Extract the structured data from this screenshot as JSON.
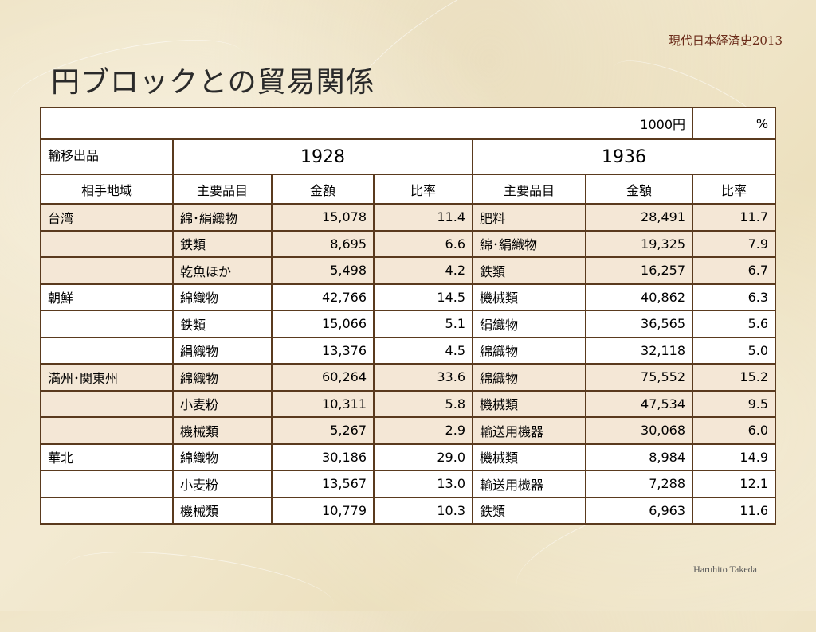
{
  "slide": {
    "header": "現代日本経済史2013",
    "title": "円ブロックとの貿易関係",
    "footer": "Haruhito Takeda"
  },
  "table": {
    "unit_amount": "1000円",
    "unit_ratio": "%",
    "corner_label": "輸移出品",
    "years": [
      "1928",
      "1936"
    ],
    "headers": {
      "region": "相手地域",
      "item_1928": "主要品目",
      "amount_1928": "金額",
      "ratio_1928": "比率",
      "item_1936": "主要品目",
      "amount_1936": "金額",
      "ratio_1936": "比率"
    },
    "rows": [
      {
        "region": "台湾",
        "item_1928": "綿･絹織物",
        "amount_1928": "15,078",
        "ratio_1928": "11.4",
        "item_1936": "肥料",
        "amount_1936": "28,491",
        "ratio_1936": "11.7"
      },
      {
        "region": "",
        "item_1928": "鉄類",
        "amount_1928": "8,695",
        "ratio_1928": "6.6",
        "item_1936": "綿･絹織物",
        "amount_1936": "19,325",
        "ratio_1936": "7.9"
      },
      {
        "region": "",
        "item_1928": "乾魚ほか",
        "amount_1928": "5,498",
        "ratio_1928": "4.2",
        "item_1936": "鉄類",
        "amount_1936": "16,257",
        "ratio_1936": "6.7"
      },
      {
        "region": "朝鮮",
        "item_1928": "綿織物",
        "amount_1928": "42,766",
        "ratio_1928": "14.5",
        "item_1936": "機械類",
        "amount_1936": "40,862",
        "ratio_1936": "6.3"
      },
      {
        "region": "",
        "item_1928": "鉄類",
        "amount_1928": "15,066",
        "ratio_1928": "5.1",
        "item_1936": "絹織物",
        "amount_1936": "36,565",
        "ratio_1936": "5.6"
      },
      {
        "region": "",
        "item_1928": "絹織物",
        "amount_1928": "13,376",
        "ratio_1928": "4.5",
        "item_1936": "綿織物",
        "amount_1936": "32,118",
        "ratio_1936": "5.0"
      },
      {
        "region": "満州･関東州",
        "item_1928": "綿織物",
        "amount_1928": "60,264",
        "ratio_1928": "33.6",
        "item_1936": "綿織物",
        "amount_1936": "75,552",
        "ratio_1936": "15.2"
      },
      {
        "region": "",
        "item_1928": "小麦粉",
        "amount_1928": "10,311",
        "ratio_1928": "5.8",
        "item_1936": "機械類",
        "amount_1936": "47,534",
        "ratio_1936": "9.5"
      },
      {
        "region": "",
        "item_1928": "機械類",
        "amount_1928": "5,267",
        "ratio_1928": "2.9",
        "item_1936": "輸送用機器",
        "amount_1936": "30,068",
        "ratio_1936": "6.0"
      },
      {
        "region": "華北",
        "item_1928": "綿織物",
        "amount_1928": "30,186",
        "ratio_1928": "29.0",
        "item_1936": "機械類",
        "amount_1936": "8,984",
        "ratio_1936": "14.9"
      },
      {
        "region": "",
        "item_1928": "小麦粉",
        "amount_1928": "13,567",
        "ratio_1928": "13.0",
        "item_1936": "輸送用機器",
        "amount_1936": "7,288",
        "ratio_1936": "12.1"
      },
      {
        "region": "",
        "item_1928": "機械類",
        "amount_1928": "10,779",
        "ratio_1928": "10.3",
        "item_1936": "鉄類",
        "amount_1936": "6,963",
        "ratio_1936": "11.6"
      }
    ]
  }
}
